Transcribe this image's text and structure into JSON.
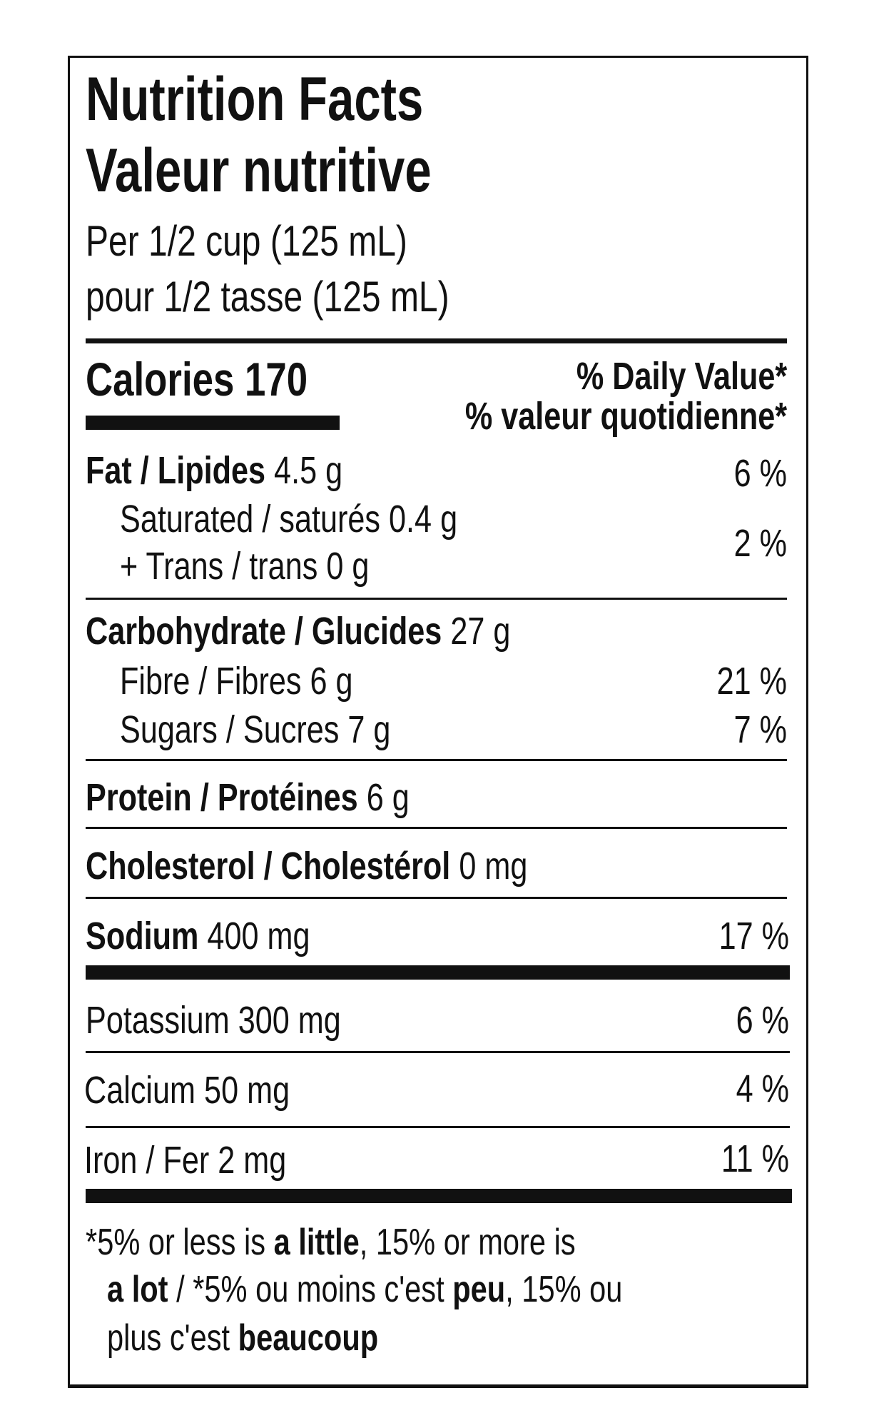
{
  "title_en": "Nutrition Facts",
  "title_fr": "Valeur nutritive",
  "serving_en": "Per 1/2 cup (125 mL)",
  "serving_fr": "pour 1/2 tasse (125 mL)",
  "calories": {
    "label": "Calories",
    "value": "170"
  },
  "dv_header_en": "% Daily Value*",
  "dv_header_fr": "% valeur quotidienne*",
  "nutrients": {
    "fat": {
      "label": "Fat / Lipides",
      "amount": "4.5 g",
      "dv": "6 %"
    },
    "saturated": {
      "label": "Saturated / saturés",
      "amount": "0.4 g"
    },
    "trans": {
      "label": "+ Trans / trans",
      "amount": "0 g"
    },
    "sat_trans_dv": "2 %",
    "carbohydrate": {
      "label": "Carbohydrate / Glucides",
      "amount": "27 g"
    },
    "fibre": {
      "label": "Fibre / Fibres",
      "amount": "6 g",
      "dv": "21 %"
    },
    "sugars": {
      "label": "Sugars / Sucres",
      "amount": "7 g",
      "dv": "7 %"
    },
    "protein": {
      "label": "Protein / Protéines",
      "amount": "6 g"
    },
    "cholesterol": {
      "label": "Cholesterol / Cholestérol",
      "amount": "0 mg"
    },
    "sodium": {
      "label": "Sodium",
      "amount": "400 mg",
      "dv": "17 %"
    },
    "potassium": {
      "label": "Potassium",
      "amount": "300 mg",
      "dv": "6 %"
    },
    "calcium": {
      "label": "Calcium",
      "amount": "50 mg",
      "dv": "4 %"
    },
    "iron": {
      "label": "Iron / Fer",
      "amount": "2 mg",
      "dv": "11 %"
    }
  },
  "footnote": {
    "p1": "*5% or less is ",
    "b1": "a little",
    "p2": ", 15% or more is",
    "b2": "a lot",
    "p3": " / *5% ou moins c'est ",
    "b3": "peu",
    "p4": ", 15% ou",
    "p5": "plus c'est ",
    "b4": "beaucoup"
  }
}
